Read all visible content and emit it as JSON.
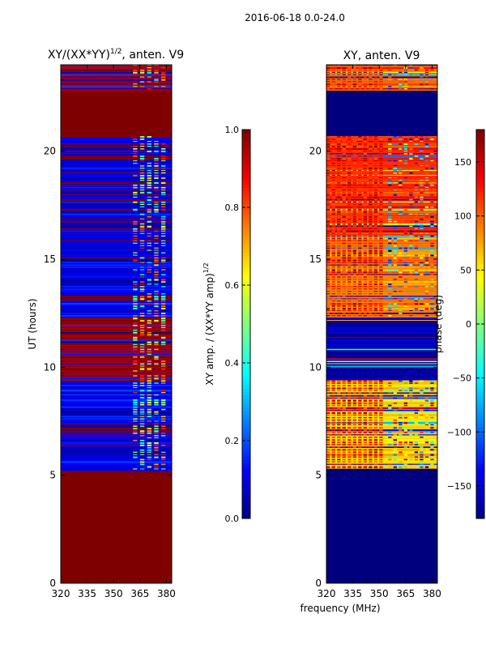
{
  "figure": {
    "suptitle": "2016-06-18 0.0-24.0",
    "shared_xlabel": "frequency (MHz)"
  },
  "colors": {
    "jet": [
      "#00007f",
      "#0000ff",
      "#0080ff",
      "#00ffff",
      "#80ff80",
      "#ffff00",
      "#ff8000",
      "#ff0000",
      "#7f0000"
    ]
  },
  "chart_data": [
    {
      "type": "heatmap",
      "title_prefix": "XY/(XX*YY)",
      "title_exp": "1/2",
      "title_suffix": ", anten. V9",
      "ylabel": "UT (hours)",
      "xlabel": "",
      "xlim": [
        320,
        383
      ],
      "ylim": [
        0,
        24
      ],
      "xticks": [
        320,
        335,
        350,
        365,
        380
      ],
      "yticks": [
        0,
        5,
        10,
        15,
        20
      ],
      "colorbar": {
        "label_prefix": "XY amp. / (XX*YY amp)",
        "label_exp": "1/2",
        "range": [
          0.0,
          1.0
        ],
        "ticks": [
          "0.0",
          "0.2",
          "0.4",
          "0.6",
          "0.8",
          "1.0"
        ],
        "tick_values": [
          0.0,
          0.2,
          0.4,
          0.6,
          0.8,
          1.0
        ]
      },
      "rows": [
        {
          "t0": 0.0,
          "t1": 5.2,
          "value": 1.0
        },
        {
          "t0": 5.2,
          "t1": 7.3,
          "value": 0.12,
          "striped": true
        },
        {
          "t0": 7.3,
          "t1": 9.4,
          "value": 0.1,
          "striped": true
        },
        {
          "t0": 9.4,
          "t1": 12.3,
          "value": 0.95,
          "striped": true
        },
        {
          "t0": 12.3,
          "t1": 16.1,
          "value": 0.1,
          "striped": true
        },
        {
          "t0": 16.1,
          "t1": 20.7,
          "value": 0.1,
          "striped": true
        },
        {
          "t0": 20.7,
          "t1": 22.8,
          "value": 1.0
        },
        {
          "t0": 22.8,
          "t1": 24.0,
          "value": 0.95,
          "striped": true
        }
      ],
      "hot_band_mhz": [
        361,
        381
      ]
    },
    {
      "type": "heatmap",
      "title_prefix": "XY, anten. V9",
      "title_exp": "",
      "title_suffix": "",
      "ylabel": "",
      "xlabel": "frequency (MHz)",
      "xlim": [
        320,
        383
      ],
      "ylim": [
        0,
        24
      ],
      "xticks": [
        320,
        335,
        350,
        365,
        380
      ],
      "yticks": [
        0,
        5,
        10,
        15,
        20
      ],
      "colorbar": {
        "label_prefix": "phase (deg)",
        "label_exp": "",
        "range": [
          -180,
          180
        ],
        "ticks": [
          "−150",
          "−100",
          "−50",
          "0",
          "50",
          "100",
          "150"
        ],
        "tick_values": [
          -150,
          -100,
          -50,
          0,
          50,
          100,
          150
        ]
      },
      "rows": [
        {
          "t0": 0.0,
          "t1": 5.3,
          "value": -180
        },
        {
          "t0": 5.3,
          "t1": 9.4,
          "value": 60,
          "striped": true
        },
        {
          "t0": 9.4,
          "t1": 12.3,
          "value": -170,
          "striped": true
        },
        {
          "t0": 12.3,
          "t1": 16.1,
          "value": 90,
          "striped": true
        },
        {
          "t0": 16.1,
          "t1": 20.7,
          "value": 120,
          "striped": true
        },
        {
          "t0": 20.7,
          "t1": 22.8,
          "value": -180
        },
        {
          "t0": 22.8,
          "t1": 24.0,
          "value": 100,
          "striped": true
        }
      ],
      "warm_band_mhz": [
        320,
        352
      ]
    }
  ]
}
